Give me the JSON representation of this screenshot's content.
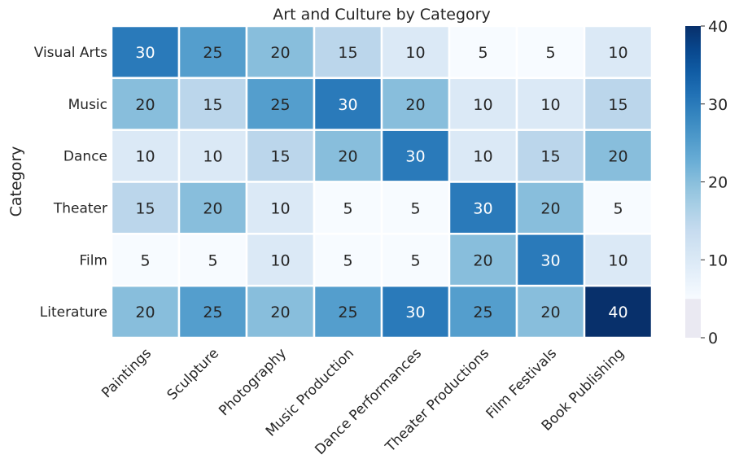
{
  "chart_data": {
    "type": "heatmap",
    "title": "Art and Culture by Category",
    "xlabel": "",
    "ylabel": "Category",
    "rows": [
      "Visual Arts",
      "Music",
      "Dance",
      "Theater",
      "Film",
      "Literature"
    ],
    "columns": [
      "Paintings",
      "Sculpture",
      "Photography",
      "Music Production",
      "Dance Performances",
      "Theater Productions",
      "Film Festivals",
      "Book Publishing"
    ],
    "values": [
      [
        30,
        25,
        20,
        15,
        10,
        5,
        5,
        10
      ],
      [
        20,
        15,
        25,
        30,
        20,
        10,
        10,
        15
      ],
      [
        10,
        10,
        15,
        20,
        30,
        10,
        15,
        20
      ],
      [
        15,
        20,
        10,
        5,
        5,
        30,
        20,
        5
      ],
      [
        5,
        5,
        10,
        5,
        5,
        20,
        30,
        10
      ],
      [
        20,
        25,
        20,
        25,
        30,
        25,
        20,
        40
      ]
    ],
    "colorbar": {
      "range": [
        0,
        40
      ],
      "ticks": [
        0,
        10,
        20,
        30,
        40
      ],
      "colormap": "Blues"
    },
    "annotations": true,
    "grid": false,
    "legend": "colorbar-right"
  },
  "colors": {
    "cell_border": "#ffffff",
    "text_dark": "#262626",
    "text_light": "#ffffff",
    "below_range": "#eae9f2"
  }
}
